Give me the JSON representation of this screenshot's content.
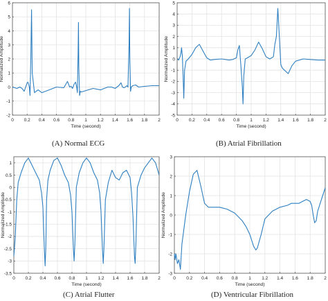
{
  "chart_data": [
    {
      "type": "line",
      "caption": "(A)  Normal ECG",
      "xlabel": "Time (second)",
      "ylabel": "Normalized Amplitude",
      "xlim": [
        0,
        2
      ],
      "ylim": [
        -2,
        6
      ],
      "xticks": [
        "0",
        "0.2",
        "0.4",
        "0.6",
        "0.8",
        "1",
        "1.2",
        "1.4",
        "1.6",
        "1.8",
        "2"
      ],
      "yticks": [
        "-2",
        "-1",
        "0",
        "1",
        "2",
        "3",
        "4",
        "5",
        "6"
      ],
      "grid": true,
      "color": "#2d7fc1",
      "x": [
        0,
        0.03,
        0.06,
        0.1,
        0.13,
        0.16,
        0.18,
        0.2,
        0.21,
        0.22,
        0.23,
        0.24,
        0.25,
        0.26,
        0.27,
        0.3,
        0.35,
        0.4,
        0.5,
        0.6,
        0.7,
        0.75,
        0.78,
        0.8,
        0.82,
        0.84,
        0.86,
        0.875,
        0.885,
        0.895,
        0.9,
        0.905,
        0.915,
        0.925,
        0.94,
        0.97,
        1.0,
        1.1,
        1.2,
        1.3,
        1.35,
        1.4,
        1.45,
        1.48,
        1.5,
        1.52,
        1.54,
        1.56,
        1.575,
        1.59,
        1.595,
        1.6,
        1.61,
        1.62,
        1.64,
        1.68,
        1.72,
        1.8,
        1.9,
        2.0
      ],
      "y": [
        0.0,
        -0.05,
        -0.1,
        0.0,
        -0.1,
        -0.3,
        0.0,
        0.3,
        0.35,
        0.2,
        0.0,
        -0.6,
        2.0,
        5.5,
        1.0,
        -0.4,
        -0.2,
        -0.4,
        -0.2,
        0.0,
        -0.05,
        0.4,
        0.0,
        0.05,
        -0.1,
        0.2,
        0.35,
        0.0,
        -0.4,
        2.5,
        4.6,
        1.5,
        -0.6,
        -0.3,
        -0.35,
        -0.3,
        -0.25,
        -0.1,
        -0.2,
        0.0,
        0.0,
        -0.1,
        0.1,
        0.3,
        0.0,
        -0.05,
        0.0,
        0.1,
        0.0,
        3.0,
        5.6,
        2.0,
        -0.3,
        0.0,
        0.1,
        0.15,
        0.0,
        0.05,
        0.1,
        0.1
      ]
    },
    {
      "type": "line",
      "caption": "(B)  Atrial Fibrillation",
      "xlabel": "Time (second)",
      "ylabel": "Normalized Amplitude",
      "xlim": [
        0,
        2
      ],
      "ylim": [
        -5,
        5
      ],
      "xticks": [
        "0",
        "0.2",
        "0.4",
        "0.6",
        "0.8",
        "1",
        "1.2",
        "1.4",
        "1.6",
        "1.8",
        "2"
      ],
      "yticks": [
        "-5",
        "-4",
        "-3",
        "-2",
        "-1",
        "0",
        "1",
        "2",
        "3",
        "4",
        "5"
      ],
      "grid": true,
      "color": "#2d7fc1",
      "x": [
        0,
        0.02,
        0.04,
        0.05,
        0.06,
        0.07,
        0.08,
        0.09,
        0.1,
        0.12,
        0.15,
        0.2,
        0.25,
        0.3,
        0.35,
        0.4,
        0.45,
        0.5,
        0.6,
        0.7,
        0.75,
        0.8,
        0.82,
        0.84,
        0.86,
        0.88,
        0.89,
        0.9,
        0.92,
        0.95,
        1.0,
        1.05,
        1.1,
        1.15,
        1.2,
        1.25,
        1.3,
        1.32,
        1.34,
        1.36,
        1.38,
        1.4,
        1.42,
        1.45,
        1.5,
        1.55,
        1.6,
        1.7,
        1.8,
        1.9,
        2.0
      ],
      "y": [
        0.0,
        -0.1,
        0.2,
        0.5,
        1.0,
        0.3,
        -1.5,
        -3.5,
        -1.0,
        -0.2,
        0.0,
        0.4,
        1.0,
        1.3,
        0.7,
        0.1,
        -0.1,
        -0.05,
        0.0,
        -0.1,
        -0.05,
        0.1,
        0.8,
        1.2,
        -0.5,
        -2.5,
        -4.0,
        -1.5,
        0.0,
        0.1,
        0.3,
        0.8,
        1.5,
        0.9,
        0.2,
        0.0,
        0.2,
        1.3,
        2.0,
        4.5,
        2.0,
        -0.5,
        -0.8,
        -1.0,
        -1.3,
        -0.6,
        -0.2,
        0.0,
        -0.05,
        -0.1,
        -0.1
      ]
    },
    {
      "type": "line",
      "caption": "(C)  Atrial Flutter",
      "xlabel": "Time (second)",
      "ylabel": "Normalized Amplitude",
      "xlim": [
        0,
        2
      ],
      "ylim": [
        -3.5,
        1.25
      ],
      "xticks": [
        "0",
        "0.2",
        "0.4",
        "0.6",
        "0.8",
        "1",
        "1.2",
        "1.4",
        "1.6",
        "1.8",
        "2"
      ],
      "yticks": [
        "-3.5",
        "-3",
        "-2.5",
        "-2",
        "-1.5",
        "-1",
        "-0.5",
        "0",
        "0.5",
        "1"
      ],
      "grid": true,
      "color": "#2d7fc1",
      "x": [
        0,
        0.02,
        0.04,
        0.06,
        0.1,
        0.15,
        0.2,
        0.25,
        0.3,
        0.35,
        0.38,
        0.4,
        0.42,
        0.43,
        0.44,
        0.45,
        0.47,
        0.5,
        0.55,
        0.6,
        0.65,
        0.7,
        0.75,
        0.78,
        0.8,
        0.82,
        0.83,
        0.84,
        0.86,
        0.9,
        0.95,
        1.0,
        1.05,
        1.1,
        1.15,
        1.18,
        1.2,
        1.22,
        1.23,
        1.24,
        1.26,
        1.3,
        1.35,
        1.4,
        1.45,
        1.5,
        1.55,
        1.6,
        1.62,
        1.64,
        1.66,
        1.67,
        1.68,
        1.7,
        1.75,
        1.8,
        1.85,
        1.9,
        1.95,
        2.0
      ],
      "y": [
        -2.8,
        -2.0,
        -0.5,
        0.2,
        0.6,
        1.0,
        1.2,
        0.9,
        0.6,
        0.3,
        -0.2,
        -0.8,
        -2.5,
        -3.2,
        -2.5,
        -0.5,
        0.3,
        0.7,
        1.1,
        1.2,
        0.9,
        0.5,
        0.2,
        -0.3,
        -1.0,
        -2.5,
        -3.0,
        -2.3,
        0.0,
        0.6,
        1.0,
        1.2,
        1.0,
        0.6,
        0.3,
        -0.2,
        -1.0,
        -2.5,
        -3.1,
        -2.5,
        -0.5,
        0.2,
        0.7,
        0.4,
        0.3,
        0.6,
        0.7,
        0.4,
        -0.2,
        -1.2,
        -2.8,
        -3.1,
        -2.3,
        0.0,
        0.5,
        0.8,
        1.0,
        1.2,
        1.0,
        0.5
      ]
    },
    {
      "type": "line",
      "caption": "(D)  Ventricular Fibrillation",
      "xlabel": "Time (second)",
      "ylabel": "Normalized Amplitude",
      "xlim": [
        0,
        2
      ],
      "ylim": [
        -3,
        3
      ],
      "xticks": [
        "0",
        "0.2",
        "0.4",
        "0.6",
        "0.8",
        "1",
        "1.2",
        "1.4",
        "1.6",
        "1.8",
        "2"
      ],
      "yticks": [
        "-3",
        "-2",
        "-1",
        "0",
        "1",
        "2",
        "3"
      ],
      "grid": true,
      "color": "#2d7fc1",
      "x": [
        0,
        0.01,
        0.02,
        0.04,
        0.06,
        0.08,
        0.1,
        0.15,
        0.2,
        0.25,
        0.3,
        0.35,
        0.4,
        0.45,
        0.5,
        0.6,
        0.7,
        0.8,
        0.9,
        0.95,
        1.0,
        1.05,
        1.08,
        1.1,
        1.15,
        1.2,
        1.3,
        1.4,
        1.5,
        1.55,
        1.6,
        1.65,
        1.7,
        1.75,
        1.8,
        1.82,
        1.84,
        1.86,
        1.88,
        1.9,
        1.95,
        2.0
      ],
      "y": [
        -2.0,
        -2.3,
        -2.0,
        -2.5,
        -2.3,
        -2.8,
        -1.5,
        0.0,
        1.2,
        2.1,
        2.3,
        1.5,
        0.6,
        0.4,
        0.4,
        0.4,
        0.3,
        0.1,
        -0.3,
        -0.6,
        -1.0,
        -1.6,
        -1.8,
        -1.7,
        -1.0,
        -0.2,
        0.2,
        0.4,
        0.5,
        0.6,
        0.6,
        0.6,
        0.7,
        0.8,
        0.7,
        0.5,
        0.0,
        -0.4,
        -0.3,
        0.2,
        0.8,
        1.4
      ]
    }
  ]
}
